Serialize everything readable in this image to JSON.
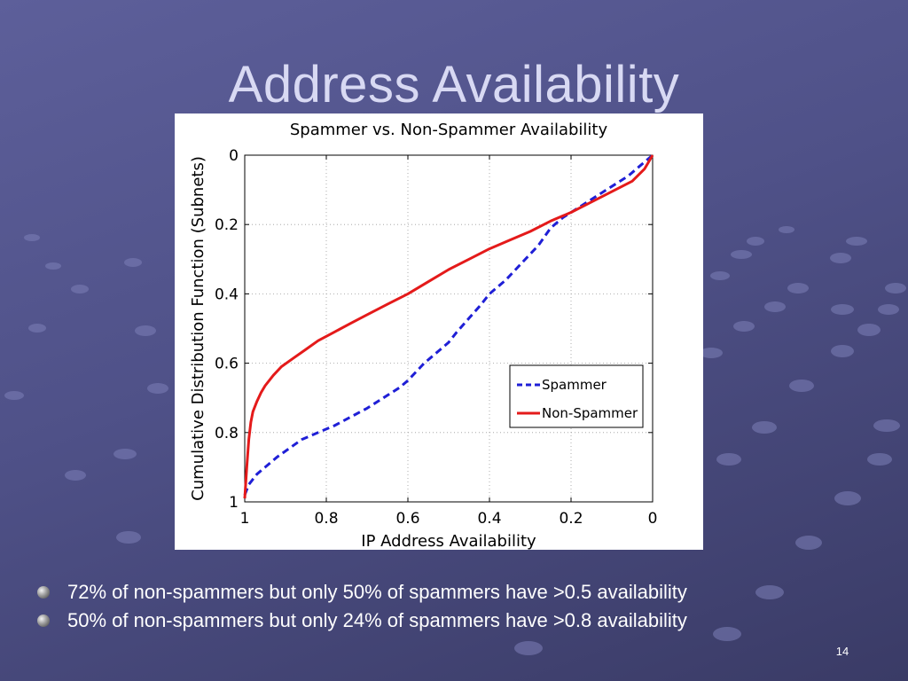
{
  "slide": {
    "title": "Address Availability",
    "page_number": "14",
    "bullets": [
      "72% of non-spammers but only 50% of spammers have >0.5 availability",
      "50% of non-spammers but only 24% of spammers have >0.8 availability"
    ]
  },
  "colors": {
    "background": "#55578f",
    "title_text": "#d8d9f3",
    "spammer": "#1f1fd6",
    "non_spammer": "#e41a1a"
  },
  "chart_data": {
    "type": "line",
    "title": "Spammer vs. Non-Spammer Availability",
    "xlabel": "IP Address Availability",
    "ylabel": "Cumulative Distribution Function (Subnets)",
    "xlim": [
      1,
      0
    ],
    "ylim": [
      0,
      1
    ],
    "x_reversed": true,
    "y_reversed": true,
    "xticks": [
      1,
      0.8,
      0.6,
      0.4,
      0.2,
      0
    ],
    "xtick_labels": [
      "1",
      "0.8",
      "0.6",
      "0.4",
      "0.2",
      "0"
    ],
    "yticks": [
      0,
      0.2,
      0.4,
      0.6,
      0.8,
      1
    ],
    "ytick_labels": [
      "0",
      "0.2",
      "0.4",
      "0.6",
      "0.8",
      "1"
    ],
    "grid": true,
    "legend_position": "lower-right",
    "series": [
      {
        "name": "Spammer",
        "style": "dashed",
        "color": "#1f1fd6",
        "x": [
          1.0,
          0.99,
          0.97,
          0.95,
          0.92,
          0.89,
          0.86,
          0.82,
          0.78,
          0.74,
          0.7,
          0.66,
          0.62,
          0.6,
          0.56,
          0.52,
          0.5,
          0.48,
          0.45,
          0.42,
          0.4,
          0.36,
          0.32,
          0.28,
          0.25,
          0.22,
          0.18,
          0.14,
          0.1,
          0.06,
          0.03,
          0.01,
          0.0
        ],
        "y": [
          0.98,
          0.95,
          0.92,
          0.9,
          0.87,
          0.845,
          0.82,
          0.8,
          0.78,
          0.755,
          0.73,
          0.7,
          0.67,
          0.65,
          0.6,
          0.56,
          0.54,
          0.51,
          0.47,
          0.43,
          0.4,
          0.36,
          0.31,
          0.26,
          0.21,
          0.18,
          0.15,
          0.12,
          0.09,
          0.06,
          0.03,
          0.01,
          0.0
        ]
      },
      {
        "name": "Non-Spammer",
        "style": "solid",
        "color": "#e41a1a",
        "x": [
          1.0,
          0.995,
          0.99,
          0.985,
          0.98,
          0.97,
          0.96,
          0.95,
          0.93,
          0.91,
          0.88,
          0.85,
          0.82,
          0.78,
          0.74,
          0.7,
          0.65,
          0.6,
          0.55,
          0.5,
          0.45,
          0.4,
          0.35,
          0.3,
          0.25,
          0.2,
          0.15,
          0.1,
          0.05,
          0.02,
          0.0
        ],
        "y": [
          0.99,
          0.9,
          0.82,
          0.77,
          0.74,
          0.71,
          0.685,
          0.665,
          0.635,
          0.61,
          0.585,
          0.56,
          0.535,
          0.51,
          0.485,
          0.46,
          0.43,
          0.4,
          0.365,
          0.33,
          0.3,
          0.27,
          0.245,
          0.22,
          0.19,
          0.165,
          0.135,
          0.105,
          0.075,
          0.04,
          0.0
        ]
      }
    ]
  }
}
